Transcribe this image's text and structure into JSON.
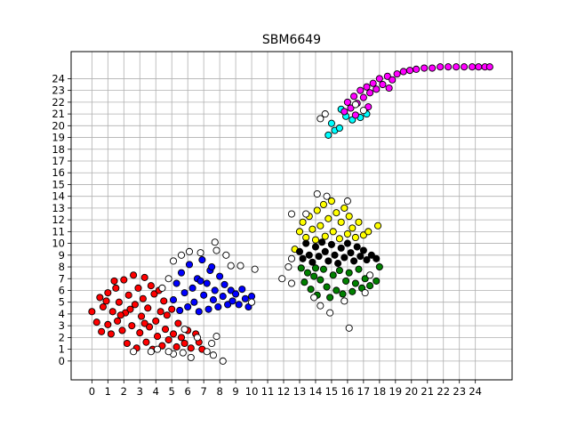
{
  "chart_data": {
    "type": "scatter",
    "title": "SBM6649",
    "xlabel": "",
    "ylabel": "",
    "xlim": [
      -1.3,
      26.3
    ],
    "ylim": [
      -1.6,
      26.3
    ],
    "xticks": [
      0,
      1,
      2,
      3,
      4,
      5,
      6,
      7,
      8,
      9,
      10,
      11,
      12,
      13,
      14,
      15,
      16,
      17,
      18,
      19,
      20,
      21,
      22,
      23,
      24
    ],
    "yticks": [
      0,
      1,
      2,
      3,
      4,
      5,
      6,
      7,
      8,
      9,
      10,
      11,
      12,
      13,
      14,
      15,
      16,
      17,
      18,
      19,
      20,
      21,
      22,
      23,
      24
    ],
    "grid": true,
    "legend": "none",
    "marker_edge_color": "#000000",
    "series": [
      {
        "color": "#ff0000",
        "points": [
          [
            0,
            4.2
          ],
          [
            0.3,
            3.3
          ],
          [
            0.5,
            5.4
          ],
          [
            0.6,
            2.5
          ],
          [
            0.7,
            4.6
          ],
          [
            1,
            3.1
          ],
          [
            1,
            5.8
          ],
          [
            1.2,
            2.3
          ],
          [
            1.3,
            4.2
          ],
          [
            1.5,
            6.2
          ],
          [
            1.6,
            3.4
          ],
          [
            1.7,
            5.0
          ],
          [
            1.9,
            2.6
          ],
          [
            2,
            6.9
          ],
          [
            2.1,
            4.1
          ],
          [
            2.2,
            1.5
          ],
          [
            2.3,
            5.6
          ],
          [
            2.5,
            3.0
          ],
          [
            2.6,
            7.3
          ],
          [
            2.7,
            4.8
          ],
          [
            2.8,
            1.1
          ],
          [
            2.9,
            6.2
          ],
          [
            3.0,
            2.4
          ],
          [
            3.1,
            3.8
          ],
          [
            3.2,
            5.3
          ],
          [
            3.3,
            7.1
          ],
          [
            3.4,
            1.6
          ],
          [
            3.5,
            4.5
          ],
          [
            3.6,
            2.9
          ],
          [
            3.7,
            6.4
          ],
          [
            3.8,
            1.0
          ],
          [
            3.9,
            5.7
          ],
          [
            4.0,
            3.4
          ],
          [
            4.1,
            2.1
          ],
          [
            4.2,
            6.0
          ],
          [
            4.3,
            4.2
          ],
          [
            4.4,
            1.3
          ],
          [
            4.5,
            5.1
          ],
          [
            4.6,
            2.7
          ],
          [
            4.7,
            3.9
          ],
          [
            4.8,
            1.8
          ],
          [
            5.0,
            4.4
          ],
          [
            5.1,
            2.3
          ],
          [
            5.3,
            1.2
          ],
          [
            5.4,
            3.2
          ],
          [
            5.6,
            2.0
          ],
          [
            5.8,
            1.5
          ],
          [
            6.0,
            2.6
          ],
          [
            6.2,
            1.1
          ],
          [
            6.5,
            2.3
          ],
          [
            6.7,
            1.6
          ],
          [
            6.9,
            1.0
          ],
          [
            1.8,
            3.9
          ],
          [
            2.4,
            4.4
          ],
          [
            3.3,
            3.2
          ],
          [
            0.9,
            5.1
          ],
          [
            1.4,
            6.8
          ]
        ]
      },
      {
        "color": "#0000ff",
        "points": [
          [
            5.1,
            5.2
          ],
          [
            5.3,
            6.6
          ],
          [
            5.5,
            4.3
          ],
          [
            5.6,
            7.5
          ],
          [
            5.8,
            5.8
          ],
          [
            6.0,
            4.6
          ],
          [
            6.1,
            8.2
          ],
          [
            6.3,
            6.2
          ],
          [
            6.4,
            5.0
          ],
          [
            6.6,
            7.0
          ],
          [
            6.7,
            4.2
          ],
          [
            6.9,
            8.6
          ],
          [
            7.0,
            5.6
          ],
          [
            7.2,
            6.6
          ],
          [
            7.3,
            4.4
          ],
          [
            7.4,
            7.7
          ],
          [
            7.6,
            5.2
          ],
          [
            7.7,
            6.0
          ],
          [
            7.9,
            4.6
          ],
          [
            8.0,
            7.2
          ],
          [
            8.2,
            5.5
          ],
          [
            8.3,
            6.5
          ],
          [
            8.5,
            4.8
          ],
          [
            8.7,
            6.0
          ],
          [
            8.8,
            5.1
          ],
          [
            9.0,
            5.7
          ],
          [
            9.2,
            4.8
          ],
          [
            9.4,
            6.1
          ],
          [
            9.6,
            5.3
          ],
          [
            9.8,
            4.6
          ],
          [
            10.0,
            5.5
          ],
          [
            6.8,
            6.8
          ],
          [
            7.5,
            8.0
          ]
        ]
      },
      {
        "color": "#ffff00",
        "points": [
          [
            13.0,
            11.0
          ],
          [
            13.2,
            11.8
          ],
          [
            13.4,
            10.5
          ],
          [
            13.6,
            12.3
          ],
          [
            13.8,
            11.2
          ],
          [
            14.0,
            10.3
          ],
          [
            14.1,
            12.8
          ],
          [
            14.3,
            11.5
          ],
          [
            14.5,
            13.3
          ],
          [
            14.6,
            10.6
          ],
          [
            14.8,
            12.1
          ],
          [
            15.0,
            13.6
          ],
          [
            15.1,
            11.0
          ],
          [
            15.3,
            12.6
          ],
          [
            15.5,
            10.4
          ],
          [
            15.6,
            11.8
          ],
          [
            15.8,
            13.0
          ],
          [
            16.0,
            10.8
          ],
          [
            16.1,
            12.3
          ],
          [
            16.3,
            11.3
          ],
          [
            16.5,
            10.5
          ],
          [
            16.7,
            11.8
          ],
          [
            17.0,
            10.7
          ],
          [
            17.3,
            11.0
          ],
          [
            17.9,
            11.5
          ],
          [
            12.7,
            9.5
          ]
        ]
      },
      {
        "color": "#000000",
        "points": [
          [
            13.0,
            9.3
          ],
          [
            13.2,
            8.7
          ],
          [
            13.4,
            10.0
          ],
          [
            13.6,
            9.0
          ],
          [
            13.8,
            8.4
          ],
          [
            14.0,
            9.7
          ],
          [
            14.2,
            8.9
          ],
          [
            14.4,
            10.1
          ],
          [
            14.6,
            9.3
          ],
          [
            14.8,
            8.5
          ],
          [
            15.0,
            9.9
          ],
          [
            15.2,
            9.0
          ],
          [
            15.4,
            8.3
          ],
          [
            15.6,
            9.6
          ],
          [
            15.8,
            8.8
          ],
          [
            16.0,
            10.0
          ],
          [
            16.2,
            9.2
          ],
          [
            16.4,
            8.5
          ],
          [
            16.6,
            9.7
          ],
          [
            16.8,
            8.9
          ],
          [
            17.0,
            9.4
          ],
          [
            17.2,
            8.6
          ],
          [
            17.5,
            9.0
          ],
          [
            17.8,
            8.7
          ]
        ]
      },
      {
        "color": "#008000",
        "points": [
          [
            13.1,
            7.9
          ],
          [
            13.3,
            6.7
          ],
          [
            13.5,
            7.5
          ],
          [
            13.7,
            6.1
          ],
          [
            13.9,
            7.2
          ],
          [
            14.1,
            5.6
          ],
          [
            14.3,
            6.9
          ],
          [
            14.5,
            7.8
          ],
          [
            14.7,
            6.3
          ],
          [
            14.9,
            5.4
          ],
          [
            15.1,
            7.3
          ],
          [
            15.3,
            6.0
          ],
          [
            15.5,
            7.7
          ],
          [
            15.7,
            5.7
          ],
          [
            15.9,
            6.8
          ],
          [
            16.1,
            7.5
          ],
          [
            16.3,
            5.9
          ],
          [
            16.5,
            6.6
          ],
          [
            16.7,
            7.8
          ],
          [
            16.9,
            6.2
          ],
          [
            17.1,
            7.0
          ],
          [
            17.4,
            6.4
          ],
          [
            17.8,
            6.8
          ],
          [
            18.0,
            8.0
          ],
          [
            14.0,
            7.9
          ]
        ]
      },
      {
        "color": "#00ffff",
        "points": [
          [
            14.8,
            19.2
          ],
          [
            15.0,
            20.2
          ],
          [
            15.2,
            19.6
          ],
          [
            15.5,
            19.8
          ],
          [
            15.9,
            20.8
          ],
          [
            16.3,
            20.5
          ],
          [
            16.8,
            20.7
          ],
          [
            17.2,
            21.0
          ],
          [
            15.6,
            21.4
          ]
        ]
      },
      {
        "color": "#ff00ff",
        "points": [
          [
            15.8,
            21.2
          ],
          [
            16.0,
            22.0
          ],
          [
            16.2,
            21.5
          ],
          [
            16.4,
            22.5
          ],
          [
            16.6,
            21.9
          ],
          [
            16.8,
            23.0
          ],
          [
            17.0,
            22.4
          ],
          [
            17.2,
            23.3
          ],
          [
            17.4,
            22.8
          ],
          [
            17.6,
            23.6
          ],
          [
            17.8,
            23.1
          ],
          [
            18.0,
            24.0
          ],
          [
            18.2,
            23.5
          ],
          [
            18.5,
            24.2
          ],
          [
            18.8,
            23.9
          ],
          [
            19.1,
            24.4
          ],
          [
            19.5,
            24.6
          ],
          [
            19.9,
            24.7
          ],
          [
            20.3,
            24.8
          ],
          [
            20.8,
            24.9
          ],
          [
            21.3,
            24.9
          ],
          [
            21.8,
            25.0
          ],
          [
            22.3,
            25.0
          ],
          [
            22.8,
            25.0
          ],
          [
            23.3,
            25.0
          ],
          [
            23.8,
            25.0
          ],
          [
            24.2,
            25.0
          ],
          [
            24.6,
            25.0
          ],
          [
            24.9,
            25.0
          ],
          [
            16.5,
            20.9
          ],
          [
            17.3,
            21.6
          ],
          [
            18.6,
            23.2
          ]
        ]
      },
      {
        "color": "#ffffff",
        "points": [
          [
            8.2,
            0.0
          ],
          [
            7.6,
            0.5
          ],
          [
            6.2,
            0.3
          ],
          [
            5.7,
            0.7
          ],
          [
            5.1,
            0.6
          ],
          [
            4.8,
            0.8
          ],
          [
            7.2,
            0.8
          ],
          [
            7.5,
            1.5
          ],
          [
            7.8,
            2.1
          ],
          [
            3.7,
            0.8
          ],
          [
            2.6,
            0.8
          ],
          [
            4.1,
            1.0
          ],
          [
            6.6,
            2.0
          ],
          [
            5.8,
            2.7
          ],
          [
            8.7,
            8.1
          ],
          [
            8.4,
            9.0
          ],
          [
            7.7,
            10.1
          ],
          [
            7.8,
            9.4
          ],
          [
            6.8,
            9.2
          ],
          [
            6.1,
            9.3
          ],
          [
            5.6,
            9.0
          ],
          [
            5.1,
            8.5
          ],
          [
            4.8,
            7.0
          ],
          [
            4.4,
            6.2
          ],
          [
            9.3,
            8.1
          ],
          [
            10.2,
            7.8
          ],
          [
            10.0,
            5.0
          ],
          [
            11.9,
            7.0
          ],
          [
            12.3,
            8.0
          ],
          [
            12.5,
            8.7
          ],
          [
            12.5,
            6.6
          ],
          [
            12.5,
            12.5
          ],
          [
            13.4,
            12.5
          ],
          [
            14.1,
            14.2
          ],
          [
            14.7,
            14.0
          ],
          [
            16.0,
            13.6
          ],
          [
            13.9,
            5.4
          ],
          [
            14.3,
            4.7
          ],
          [
            14.9,
            4.1
          ],
          [
            16.1,
            2.8
          ],
          [
            17.1,
            5.8
          ],
          [
            17.4,
            7.3
          ],
          [
            15.8,
            5.1
          ],
          [
            14.6,
            21.0
          ],
          [
            14.3,
            20.6
          ],
          [
            17.0,
            21.3
          ],
          [
            16.5,
            21.8
          ]
        ]
      }
    ]
  }
}
